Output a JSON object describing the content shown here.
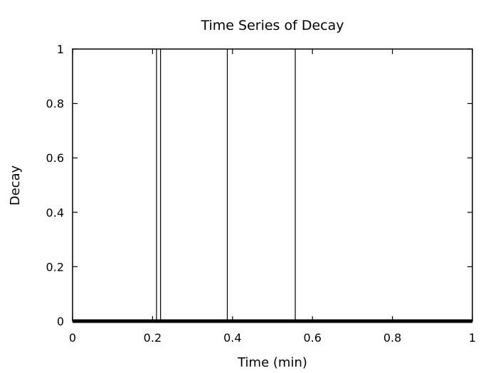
{
  "chart_data": {
    "type": "line",
    "title": "Time Series of Decay",
    "xlabel": "Time (min)",
    "ylabel": "Decay",
    "xlim": [
      0,
      1
    ],
    "ylim": [
      0,
      1
    ],
    "x_ticks": [
      0,
      0.2,
      0.4,
      0.6,
      0.8,
      1
    ],
    "x_tick_labels": [
      "0",
      "0.2",
      "0.4",
      "0.6",
      "0.8",
      "1"
    ],
    "y_ticks": [
      0,
      0.2,
      0.4,
      0.6,
      0.8,
      1
    ],
    "y_tick_labels": [
      "0",
      "0.2",
      "0.4",
      "0.6",
      "0.8",
      "1"
    ],
    "grid": false,
    "legend": "none",
    "series": [
      {
        "name": "Decay",
        "baseline": 0,
        "spikes": [
          {
            "x": 0.21,
            "y": 1
          },
          {
            "x": 0.22,
            "y": 1
          },
          {
            "x": 0.387,
            "y": 1
          },
          {
            "x": 0.557,
            "y": 1
          }
        ]
      }
    ],
    "colors": {
      "line": "#000000",
      "axes": "#000000",
      "background": "#ffffff"
    }
  }
}
